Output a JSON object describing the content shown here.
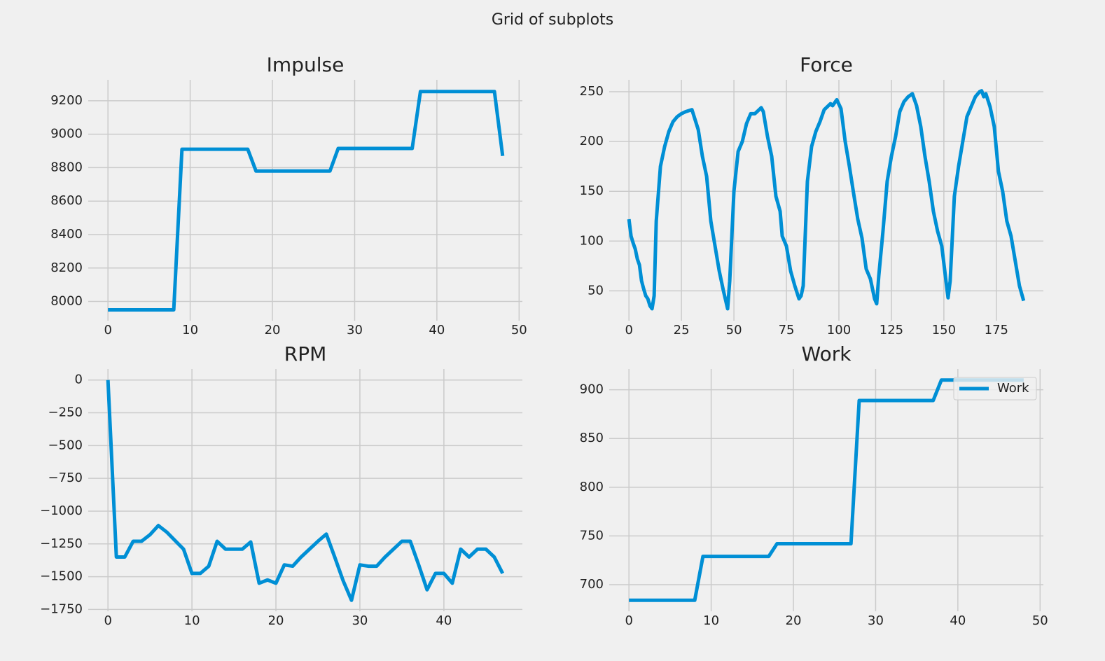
{
  "title": "Grid of subplots",
  "chart_data": [
    {
      "type": "line",
      "title": "Impulse",
      "series": [
        {
          "color": "#008fd5",
          "values": [
            7950,
            7950,
            7950,
            7950,
            7950,
            7950,
            7950,
            7950,
            7950,
            8910,
            8910,
            8910,
            8910,
            8910,
            8910,
            8910,
            8910,
            8910,
            8780,
            8780,
            8780,
            8780,
            8780,
            8780,
            8780,
            8780,
            8780,
            8780,
            8915,
            8915,
            8915,
            8915,
            8915,
            8915,
            8915,
            8915,
            8915,
            8915,
            9255,
            9255,
            9255,
            9255,
            9255,
            9255,
            9255,
            9255,
            9255,
            9255,
            8870
          ]
        }
      ],
      "xlim": [
        -2.4,
        50.4
      ],
      "xticks": [
        0,
        10,
        20,
        30,
        40,
        50
      ],
      "ylim": [
        7885,
        9325
      ],
      "yticks": [
        8000,
        8200,
        8400,
        8600,
        8800,
        9000,
        9200
      ],
      "grid": true
    },
    {
      "type": "line",
      "title": "Force",
      "x": [
        0,
        1,
        2,
        3,
        4,
        5,
        6,
        7,
        8,
        9,
        10,
        11,
        12,
        13,
        15,
        17,
        19,
        21,
        23,
        25,
        27,
        30,
        33,
        35,
        37,
        39,
        41,
        43,
        45,
        47,
        48,
        50,
        52,
        54,
        56,
        58,
        60,
        62,
        63,
        64,
        66,
        68,
        70,
        72,
        73,
        75,
        77,
        79,
        81,
        82,
        83,
        85,
        87,
        89,
        91,
        93,
        95,
        96,
        97,
        99,
        101,
        103,
        105,
        107,
        109,
        111,
        113,
        115,
        117,
        118,
        119,
        121,
        123,
        125,
        127,
        129,
        131,
        133,
        135,
        137,
        139,
        141,
        143,
        145,
        147,
        149,
        151,
        152,
        153,
        155,
        157,
        159,
        161,
        163,
        165,
        167,
        168,
        169,
        170,
        172,
        174,
        176,
        178,
        180,
        182,
        184,
        186,
        188
      ],
      "series": [
        {
          "color": "#008fd5",
          "values": [
            122,
            105,
            98,
            92,
            82,
            76,
            60,
            52,
            45,
            42,
            35,
            32,
            45,
            120,
            175,
            195,
            210,
            220,
            225,
            228,
            230,
            232,
            212,
            185,
            165,
            120,
            95,
            70,
            50,
            32,
            60,
            150,
            190,
            200,
            218,
            228,
            228,
            232,
            234,
            230,
            205,
            185,
            145,
            130,
            105,
            95,
            70,
            55,
            42,
            45,
            55,
            160,
            195,
            210,
            220,
            232,
            236,
            238,
            236,
            242,
            233,
            200,
            175,
            148,
            122,
            103,
            72,
            62,
            42,
            37,
            65,
            110,
            160,
            185,
            205,
            230,
            240,
            245,
            248,
            236,
            215,
            185,
            160,
            130,
            110,
            95,
            60,
            43,
            60,
            145,
            175,
            200,
            225,
            235,
            245,
            250,
            251,
            245,
            248,
            235,
            215,
            170,
            150,
            120,
            105,
            80,
            55,
            40
          ]
        }
      ],
      "xlim": [
        -9.4,
        197.4
      ],
      "xticks": [
        0,
        25,
        50,
        75,
        100,
        125,
        150,
        175
      ],
      "ylim": [
        20,
        262
      ],
      "yticks": [
        50,
        100,
        150,
        200,
        250
      ],
      "grid": true
    },
    {
      "type": "line",
      "title": "RPM",
      "series": [
        {
          "color": "#008fd5",
          "values": [
            0,
            -1350,
            -1350,
            -1230,
            -1230,
            -1180,
            -1110,
            -1160,
            -1225,
            -1290,
            -1475,
            -1475,
            -1420,
            -1230,
            -1290,
            -1290,
            -1290,
            -1235,
            -1550,
            -1525,
            -1550,
            -1410,
            -1420,
            -1350,
            -1290,
            -1230,
            -1175,
            -1350,
            -1530,
            -1680,
            -1410,
            -1420,
            -1420,
            -1350,
            -1290,
            -1230,
            -1230,
            -1410,
            -1600,
            -1475,
            -1475,
            -1550,
            -1290,
            -1350,
            -1290,
            -1290,
            -1350,
            -1475
          ]
        }
      ],
      "xlim": [
        -2.35,
        49.35
      ],
      "xticks": [
        0,
        10,
        20,
        30,
        40
      ],
      "ylim": [
        -1764,
        84
      ],
      "yticks": [
        0,
        {
          "value": -250,
          "label": "−250"
        },
        {
          "value": -500,
          "label": "−500"
        },
        {
          "value": -750,
          "label": "−750"
        },
        {
          "value": -1000,
          "label": "−1000"
        },
        {
          "value": -1250,
          "label": "−1250"
        },
        {
          "value": -1500,
          "label": "−1500"
        },
        {
          "value": -1750,
          "label": "−1750"
        }
      ],
      "grid": true
    },
    {
      "type": "line",
      "title": "Work",
      "series": [
        {
          "name": "Work",
          "color": "#008fd5",
          "values": [
            684,
            684,
            684,
            684,
            684,
            684,
            684,
            684,
            684,
            729,
            729,
            729,
            729,
            729,
            729,
            729,
            729,
            729,
            742,
            742,
            742,
            742,
            742,
            742,
            742,
            742,
            742,
            742,
            889,
            889,
            889,
            889,
            889,
            889,
            889,
            889,
            889,
            889,
            910,
            910,
            910,
            910,
            910,
            910,
            910,
            910,
            910,
            910,
            910
          ]
        }
      ],
      "xlim": [
        -2.4,
        50.4
      ],
      "xticks": [
        0,
        10,
        20,
        30,
        40,
        50
      ],
      "ylim": [
        672.7,
        921.3
      ],
      "yticks": [
        700,
        750,
        800,
        850,
        900
      ],
      "grid": true,
      "legend": "upper right"
    }
  ]
}
